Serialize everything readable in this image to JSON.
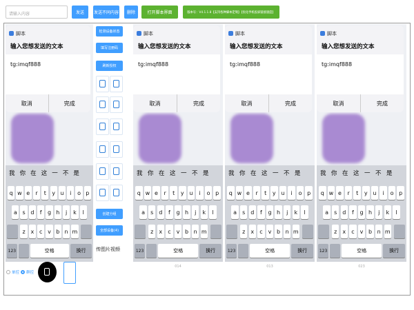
{
  "toolbar": {
    "search_placeholder": "请输入内容",
    "buttons": [
      "发送",
      "发送不同内容",
      "删除",
      "打开脚本界面",
      "版本号：V4.1.1.8【支持各种脚本定制】【优化手机投屏链接速度】"
    ]
  },
  "sidebar": {
    "buttons": [
      "检测设备状态",
      "填写注册码",
      "刷新授权",
      "创建分组",
      "全部设备(4)"
    ],
    "media": "传图片视频"
  },
  "controls": {
    "single": "单控",
    "group": "群控"
  },
  "dialog": {
    "app": "脚本",
    "prompt": "输入您想发送的文本",
    "input": "tg:imqf888",
    "cancel": "取消",
    "confirm": "完成"
  },
  "keyboard": {
    "candidates": [
      "我",
      "你",
      "在",
      "这",
      "一",
      "不",
      "是"
    ],
    "rows": [
      [
        "q",
        "w",
        "e",
        "r",
        "t",
        "y",
        "u",
        "i",
        "o",
        "p"
      ],
      [
        "a",
        "s",
        "d",
        "f",
        "g",
        "h",
        "j",
        "k",
        "l"
      ],
      [
        "z",
        "x",
        "c",
        "v",
        "b",
        "n",
        "m"
      ]
    ],
    "numbers": "123",
    "space": "空格",
    "return": "换行"
  },
  "device_labels": [
    "014",
    "013",
    "023"
  ]
}
